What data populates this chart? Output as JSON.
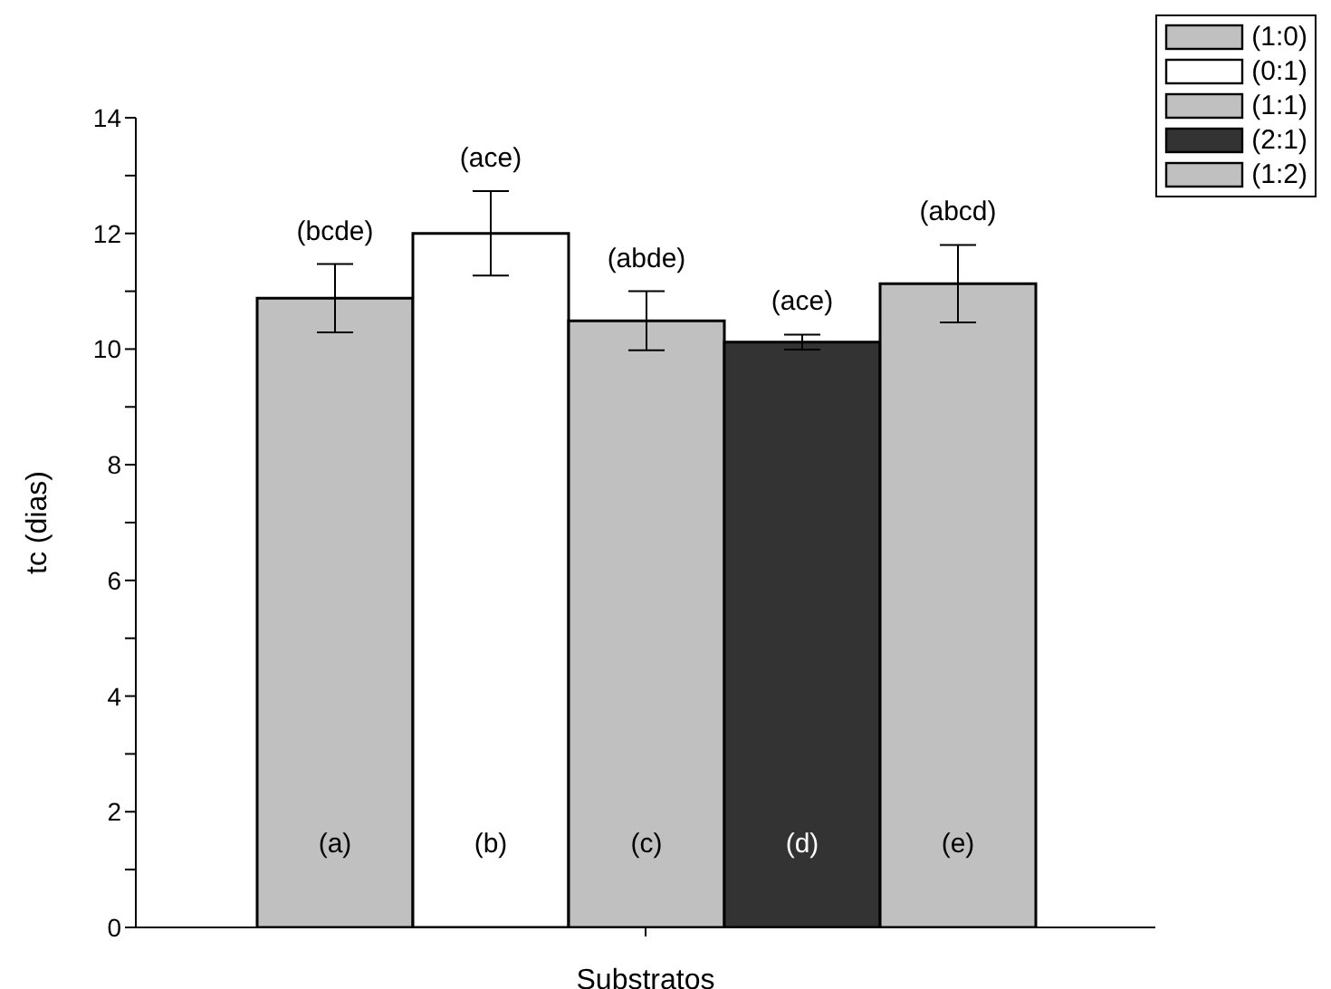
{
  "chart_data": {
    "type": "bar",
    "xlabel": "Substratos",
    "ylabel": "tc (dias)",
    "categories": [
      null
    ],
    "series": [
      {
        "name": "(1:0)",
        "color": "#c0c0c0",
        "values": [
          10.88
        ],
        "errors": [
          0.59
        ]
      },
      {
        "name": "(0:1)",
        "color": "#ffffff",
        "values": [
          12.0
        ],
        "errors": [
          0.73
        ]
      },
      {
        "name": "(1:1)",
        "color": "#c0c0c0",
        "values": [
          10.49
        ],
        "errors": [
          0.51
        ]
      },
      {
        "name": "(2:1)",
        "color": "#333333",
        "values": [
          10.12
        ],
        "errors": [
          0.13
        ]
      },
      {
        "name": "(1:2)",
        "color": "#c0c0c0",
        "values": [
          11.13
        ],
        "errors": [
          0.67
        ]
      }
    ],
    "ylim": [
      0,
      14
    ],
    "yticks": [
      0,
      {
        "value": 1,
        "label": null
      },
      2,
      {
        "value": 3,
        "label": null
      },
      4,
      {
        "value": 5,
        "label": null
      },
      6,
      {
        "value": 7,
        "label": null
      },
      8,
      {
        "value": 9,
        "label": null
      },
      10,
      {
        "value": 11,
        "label": null
      },
      12,
      {
        "value": 13,
        "label": null
      },
      14
    ],
    "annotations": [
      "(bcde)",
      "(ace)",
      "(abde)",
      "(ace)",
      "(abcd)",
      "(a)",
      "(b)",
      "(c)",
      "(d)",
      "(e)"
    ],
    "legend": "top right",
    "grid": false
  }
}
